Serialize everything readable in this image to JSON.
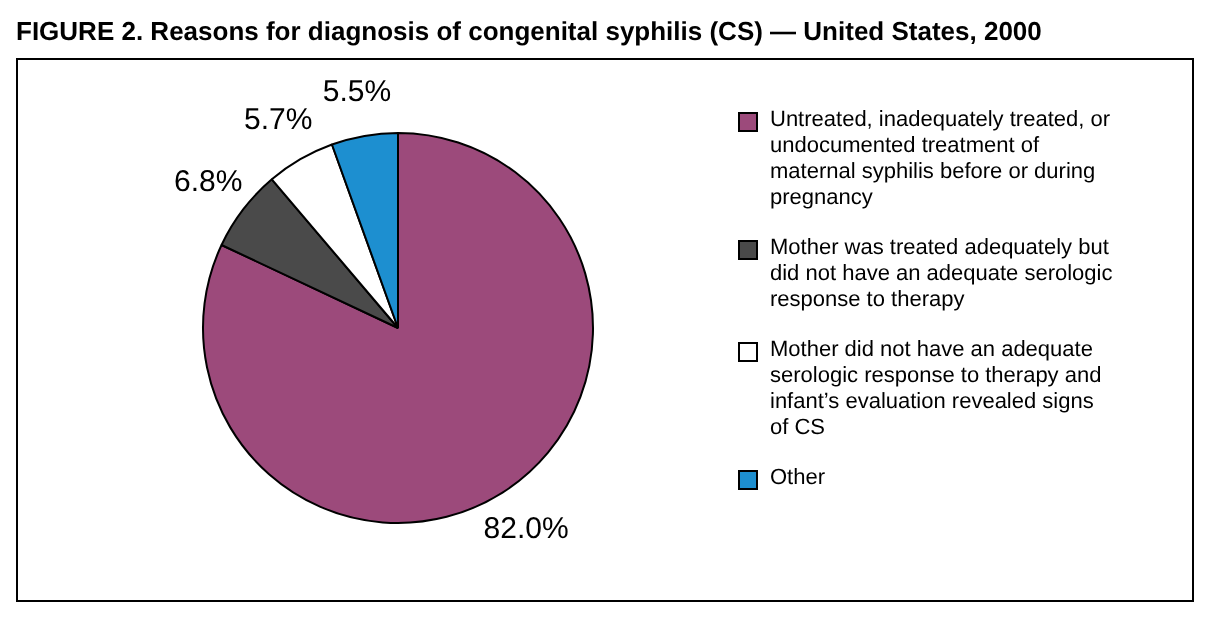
{
  "chart_data": {
    "type": "pie",
    "title": "FIGURE 2. Reasons for diagnosis of congenital syphilis (CS) — United States, 2000",
    "categories": [
      "Untreated, inadequately treated, or undocumented treatment of maternal syphilis before or during pregnancy",
      "Mother was treated adequately but did not have an adequate serologic response to therapy",
      "Mother did not have an adequate serologic response to therapy and infant’s evaluation revealed signs of CS",
      "Other"
    ],
    "values": [
      82.0,
      6.8,
      5.7,
      5.5
    ],
    "colors": [
      "#9c4a7b",
      "#4a4a4a",
      "#ffffff",
      "#1d8fd0"
    ],
    "value_labels": [
      "82.0%",
      "6.8%",
      "5.7%",
      "5.5%"
    ],
    "legend": "right"
  }
}
